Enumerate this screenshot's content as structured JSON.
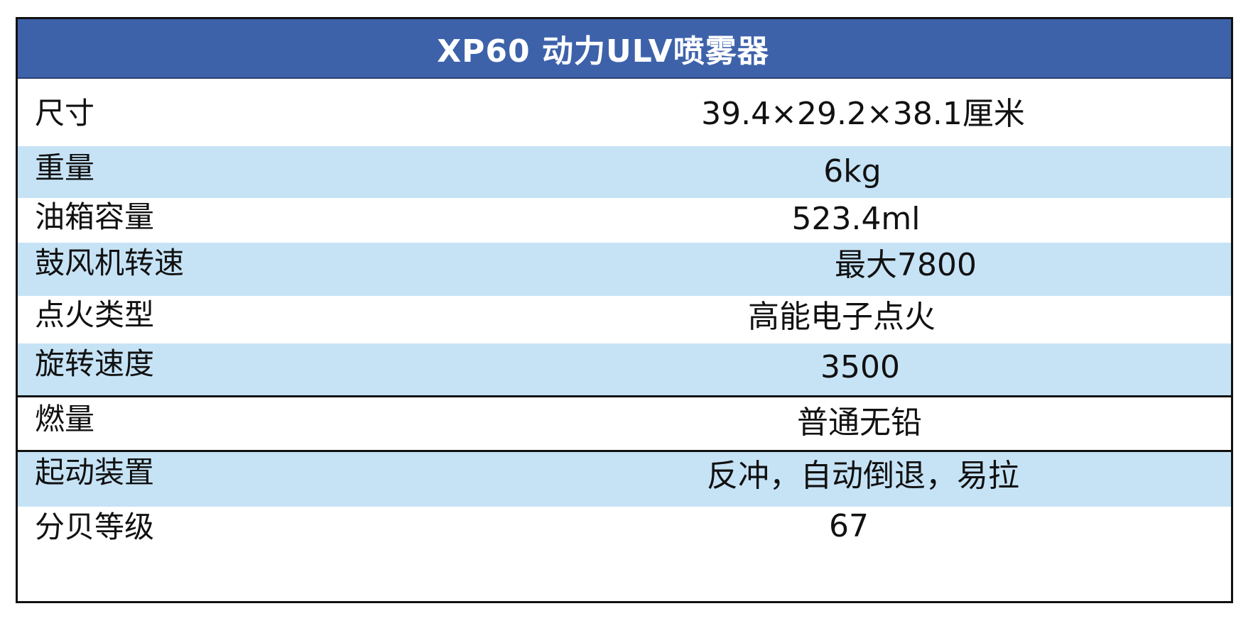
{
  "table": {
    "title": "XP60 动力ULV喷雾器",
    "rows": [
      {
        "label": "尺寸",
        "value": "39.4×29.2×38.1厘米"
      },
      {
        "label": "重量",
        "value": "6kg"
      },
      {
        "label": "油箱容量",
        "value": "523.4ml"
      },
      {
        "label": "鼓风机转速",
        "value": "最大7800"
      },
      {
        "label": "点火类型",
        "value": "高能电子点火"
      },
      {
        "label": "旋转速度",
        "value": "3500"
      },
      {
        "label": "燃量",
        "value": "普通无铅"
      },
      {
        "label": "起动装置",
        "value": "反冲，自动倒退，易拉"
      },
      {
        "label": "分贝等级",
        "value": "67"
      }
    ],
    "colors": {
      "header": "#3d62aa",
      "shaded_row": "#c6e3f6",
      "plain_row": "#ffffff",
      "border": "#111111"
    }
  }
}
